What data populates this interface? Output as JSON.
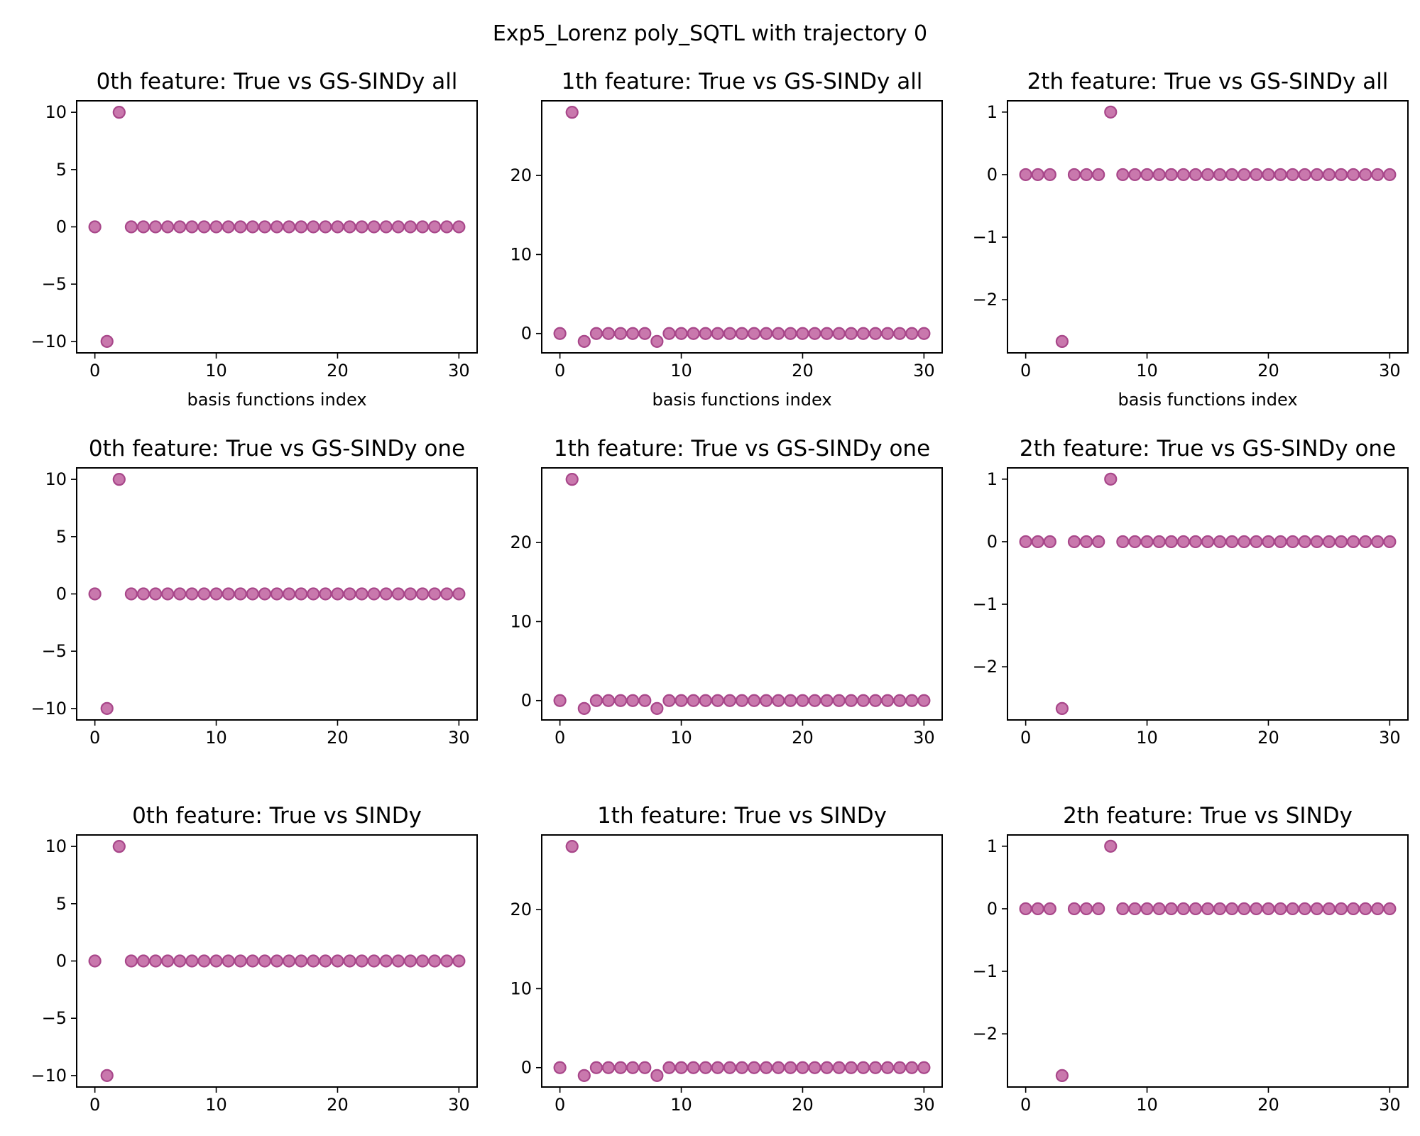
{
  "figure_title": "Exp5_Lorenz poly_SQTL with trajectory 0",
  "marker_color": "#c0609f",
  "marker_edge": "#a8478a",
  "chart_data": [
    {
      "type": "scatter",
      "title": "0th feature: True vs GS-SINDy all",
      "xlabel": "basis functions index",
      "ylabel": "",
      "x": [
        0,
        1,
        2,
        3,
        4,
        5,
        6,
        7,
        8,
        9,
        10,
        11,
        12,
        13,
        14,
        15,
        16,
        17,
        18,
        19,
        20,
        21,
        22,
        23,
        24,
        25,
        26,
        27,
        28,
        29,
        30
      ],
      "y": [
        0,
        -10,
        10,
        0,
        0,
        0,
        0,
        0,
        0,
        0,
        0,
        0,
        0,
        0,
        0,
        0,
        0,
        0,
        0,
        0,
        0,
        0,
        0,
        0,
        0,
        0,
        0,
        0,
        0,
        0,
        0
      ],
      "xlim": [
        -1.5,
        31.5
      ],
      "ylim": [
        -11,
        11
      ],
      "xticks": [
        0,
        10,
        20,
        30
      ],
      "yticks": [
        -10,
        -5,
        0,
        5,
        10
      ],
      "xtick_labels": [
        "0",
        "10",
        "20",
        "30"
      ],
      "ytick_labels": [
        "−10",
        "−5",
        "0",
        "5",
        "10"
      ]
    },
    {
      "type": "scatter",
      "title": "1th feature: True vs GS-SINDy all",
      "xlabel": "basis functions index",
      "ylabel": "",
      "x": [
        0,
        1,
        2,
        3,
        4,
        5,
        6,
        7,
        8,
        9,
        10,
        11,
        12,
        13,
        14,
        15,
        16,
        17,
        18,
        19,
        20,
        21,
        22,
        23,
        24,
        25,
        26,
        27,
        28,
        29,
        30
      ],
      "y": [
        0,
        28,
        -1,
        0,
        0,
        0,
        0,
        0,
        -1,
        0,
        0,
        0,
        0,
        0,
        0,
        0,
        0,
        0,
        0,
        0,
        0,
        0,
        0,
        0,
        0,
        0,
        0,
        0,
        0,
        0,
        0
      ],
      "xlim": [
        -1.5,
        31.5
      ],
      "ylim": [
        -2.45,
        29.45
      ],
      "xticks": [
        0,
        10,
        20,
        30
      ],
      "yticks": [
        0,
        10,
        20
      ],
      "xtick_labels": [
        "0",
        "10",
        "20",
        "30"
      ],
      "ytick_labels": [
        "0",
        "10",
        "20"
      ]
    },
    {
      "type": "scatter",
      "title": "2th feature: True vs GS-SINDy all",
      "xlabel": "basis functions index",
      "ylabel": "",
      "x": [
        0,
        1,
        2,
        3,
        4,
        5,
        6,
        7,
        8,
        9,
        10,
        11,
        12,
        13,
        14,
        15,
        16,
        17,
        18,
        19,
        20,
        21,
        22,
        23,
        24,
        25,
        26,
        27,
        28,
        29,
        30
      ],
      "y": [
        0,
        0,
        0,
        -2.667,
        0,
        0,
        0,
        1,
        0,
        0,
        0,
        0,
        0,
        0,
        0,
        0,
        0,
        0,
        0,
        0,
        0,
        0,
        0,
        0,
        0,
        0,
        0,
        0,
        0,
        0,
        0
      ],
      "xlim": [
        -1.5,
        31.5
      ],
      "ylim": [
        -2.85,
        1.18
      ],
      "xticks": [
        0,
        10,
        20,
        30
      ],
      "yticks": [
        -2,
        -1,
        0,
        1
      ],
      "xtick_labels": [
        "0",
        "10",
        "20",
        "30"
      ],
      "ytick_labels": [
        "−2",
        "−1",
        "0",
        "1"
      ]
    },
    {
      "type": "scatter",
      "title": "0th feature: True vs GS-SINDy one",
      "xlabel": "",
      "ylabel": "",
      "x": [
        0,
        1,
        2,
        3,
        4,
        5,
        6,
        7,
        8,
        9,
        10,
        11,
        12,
        13,
        14,
        15,
        16,
        17,
        18,
        19,
        20,
        21,
        22,
        23,
        24,
        25,
        26,
        27,
        28,
        29,
        30
      ],
      "y": [
        0,
        -10,
        10,
        0,
        0,
        0,
        0,
        0,
        0,
        0,
        0,
        0,
        0,
        0,
        0,
        0,
        0,
        0,
        0,
        0,
        0,
        0,
        0,
        0,
        0,
        0,
        0,
        0,
        0,
        0,
        0
      ],
      "xlim": [
        -1.5,
        31.5
      ],
      "ylim": [
        -11,
        11
      ],
      "xticks": [
        0,
        10,
        20,
        30
      ],
      "yticks": [
        -10,
        -5,
        0,
        5,
        10
      ],
      "xtick_labels": [
        "0",
        "10",
        "20",
        "30"
      ],
      "ytick_labels": [
        "−10",
        "−5",
        "0",
        "5",
        "10"
      ]
    },
    {
      "type": "scatter",
      "title": "1th feature: True vs GS-SINDy one",
      "xlabel": "",
      "ylabel": "",
      "x": [
        0,
        1,
        2,
        3,
        4,
        5,
        6,
        7,
        8,
        9,
        10,
        11,
        12,
        13,
        14,
        15,
        16,
        17,
        18,
        19,
        20,
        21,
        22,
        23,
        24,
        25,
        26,
        27,
        28,
        29,
        30
      ],
      "y": [
        0,
        28,
        -1,
        0,
        0,
        0,
        0,
        0,
        -1,
        0,
        0,
        0,
        0,
        0,
        0,
        0,
        0,
        0,
        0,
        0,
        0,
        0,
        0,
        0,
        0,
        0,
        0,
        0,
        0,
        0,
        0
      ],
      "xlim": [
        -1.5,
        31.5
      ],
      "ylim": [
        -2.45,
        29.45
      ],
      "xticks": [
        0,
        10,
        20,
        30
      ],
      "yticks": [
        0,
        10,
        20
      ],
      "xtick_labels": [
        "0",
        "10",
        "20",
        "30"
      ],
      "ytick_labels": [
        "0",
        "10",
        "20"
      ]
    },
    {
      "type": "scatter",
      "title": "2th feature: True vs GS-SINDy one",
      "xlabel": "",
      "ylabel": "",
      "x": [
        0,
        1,
        2,
        3,
        4,
        5,
        6,
        7,
        8,
        9,
        10,
        11,
        12,
        13,
        14,
        15,
        16,
        17,
        18,
        19,
        20,
        21,
        22,
        23,
        24,
        25,
        26,
        27,
        28,
        29,
        30
      ],
      "y": [
        0,
        0,
        0,
        -2.667,
        0,
        0,
        0,
        1,
        0,
        0,
        0,
        0,
        0,
        0,
        0,
        0,
        0,
        0,
        0,
        0,
        0,
        0,
        0,
        0,
        0,
        0,
        0,
        0,
        0,
        0,
        0
      ],
      "xlim": [
        -1.5,
        31.5
      ],
      "ylim": [
        -2.85,
        1.18
      ],
      "xticks": [
        0,
        10,
        20,
        30
      ],
      "yticks": [
        -2,
        -1,
        0,
        1
      ],
      "xtick_labels": [
        "0",
        "10",
        "20",
        "30"
      ],
      "ytick_labels": [
        "−2",
        "−1",
        "0",
        "1"
      ]
    },
    {
      "type": "scatter",
      "title": "0th feature: True vs SINDy",
      "xlabel": "",
      "ylabel": "",
      "x": [
        0,
        1,
        2,
        3,
        4,
        5,
        6,
        7,
        8,
        9,
        10,
        11,
        12,
        13,
        14,
        15,
        16,
        17,
        18,
        19,
        20,
        21,
        22,
        23,
        24,
        25,
        26,
        27,
        28,
        29,
        30
      ],
      "y": [
        0,
        -10,
        10,
        0,
        0,
        0,
        0,
        0,
        0,
        0,
        0,
        0,
        0,
        0,
        0,
        0,
        0,
        0,
        0,
        0,
        0,
        0,
        0,
        0,
        0,
        0,
        0,
        0,
        0,
        0,
        0
      ],
      "xlim": [
        -1.5,
        31.5
      ],
      "ylim": [
        -11,
        11
      ],
      "xticks": [
        0,
        10,
        20,
        30
      ],
      "yticks": [
        -10,
        -5,
        0,
        5,
        10
      ],
      "xtick_labels": [
        "0",
        "10",
        "20",
        "30"
      ],
      "ytick_labels": [
        "−10",
        "−5",
        "0",
        "5",
        "10"
      ]
    },
    {
      "type": "scatter",
      "title": "1th feature: True vs SINDy",
      "xlabel": "",
      "ylabel": "",
      "x": [
        0,
        1,
        2,
        3,
        4,
        5,
        6,
        7,
        8,
        9,
        10,
        11,
        12,
        13,
        14,
        15,
        16,
        17,
        18,
        19,
        20,
        21,
        22,
        23,
        24,
        25,
        26,
        27,
        28,
        29,
        30
      ],
      "y": [
        0,
        28,
        -1,
        0,
        0,
        0,
        0,
        0,
        -1,
        0,
        0,
        0,
        0,
        0,
        0,
        0,
        0,
        0,
        0,
        0,
        0,
        0,
        0,
        0,
        0,
        0,
        0,
        0,
        0,
        0,
        0
      ],
      "xlim": [
        -1.5,
        31.5
      ],
      "ylim": [
        -2.45,
        29.45
      ],
      "xticks": [
        0,
        10,
        20,
        30
      ],
      "yticks": [
        0,
        10,
        20
      ],
      "xtick_labels": [
        "0",
        "10",
        "20",
        "30"
      ],
      "ytick_labels": [
        "0",
        "10",
        "20"
      ]
    },
    {
      "type": "scatter",
      "title": "2th feature: True vs SINDy",
      "xlabel": "",
      "ylabel": "",
      "x": [
        0,
        1,
        2,
        3,
        4,
        5,
        6,
        7,
        8,
        9,
        10,
        11,
        12,
        13,
        14,
        15,
        16,
        17,
        18,
        19,
        20,
        21,
        22,
        23,
        24,
        25,
        26,
        27,
        28,
        29,
        30
      ],
      "y": [
        0,
        0,
        0,
        -2.667,
        0,
        0,
        0,
        1,
        0,
        0,
        0,
        0,
        0,
        0,
        0,
        0,
        0,
        0,
        0,
        0,
        0,
        0,
        0,
        0,
        0,
        0,
        0,
        0,
        0,
        0,
        0
      ],
      "xlim": [
        -1.5,
        31.5
      ],
      "ylim": [
        -2.85,
        1.18
      ],
      "xticks": [
        0,
        10,
        20,
        30
      ],
      "yticks": [
        -2,
        -1,
        0,
        1
      ],
      "xtick_labels": [
        "0",
        "10",
        "20",
        "30"
      ],
      "ytick_labels": [
        "−2",
        "−1",
        "0",
        "1"
      ]
    }
  ]
}
